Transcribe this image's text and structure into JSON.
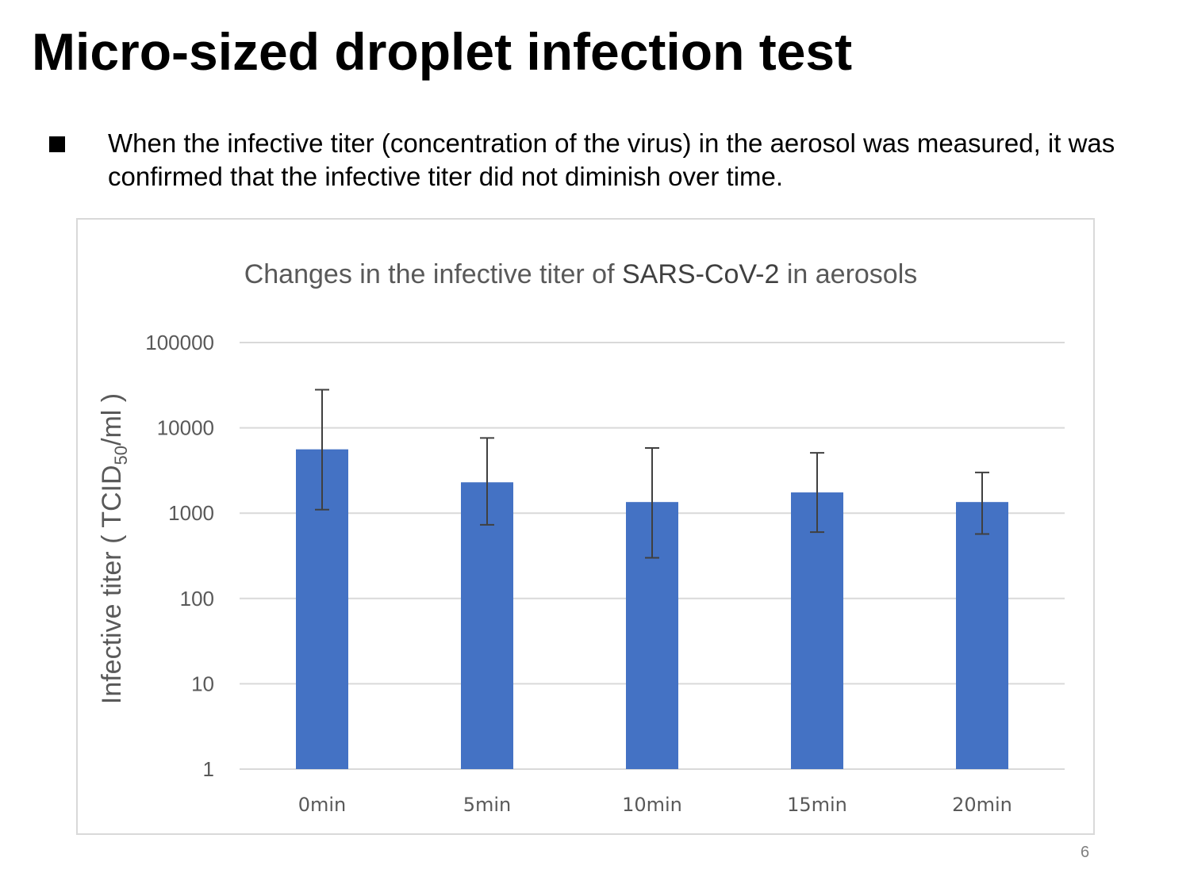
{
  "slide": {
    "title": "Micro-sized droplet infection test",
    "bullet": "When the infective titer (concentration of the virus) in the aerosol was measured, it was confirmed that the infective titer did not diminish over time.",
    "page_number": "6"
  },
  "chart_data": {
    "type": "bar",
    "title_parts": [
      "Changes in the infective titer of ",
      "SARS-CoV-2",
      " in aerosols"
    ],
    "ylabel": "Infective titer ( TCID50/ml )",
    "ylabel_parts": [
      "Infective titer ( TCID",
      "50",
      "/ml )"
    ],
    "yscale": "log",
    "ylim": [
      1,
      100000
    ],
    "yticks": [
      "1",
      "10",
      "100",
      "1000",
      "10000",
      "100000"
    ],
    "categories": [
      "0min",
      "5min",
      "10min",
      "15min",
      "20min"
    ],
    "values": [
      5600,
      2300,
      1350,
      1750,
      1350
    ],
    "error_low": [
      1100,
      730,
      300,
      600,
      570
    ],
    "error_high": [
      28000,
      7600,
      5800,
      5100,
      3000
    ],
    "bar_color": "#4472c4",
    "error_bar_color": "#404040",
    "grid": true,
    "legend": "none"
  }
}
